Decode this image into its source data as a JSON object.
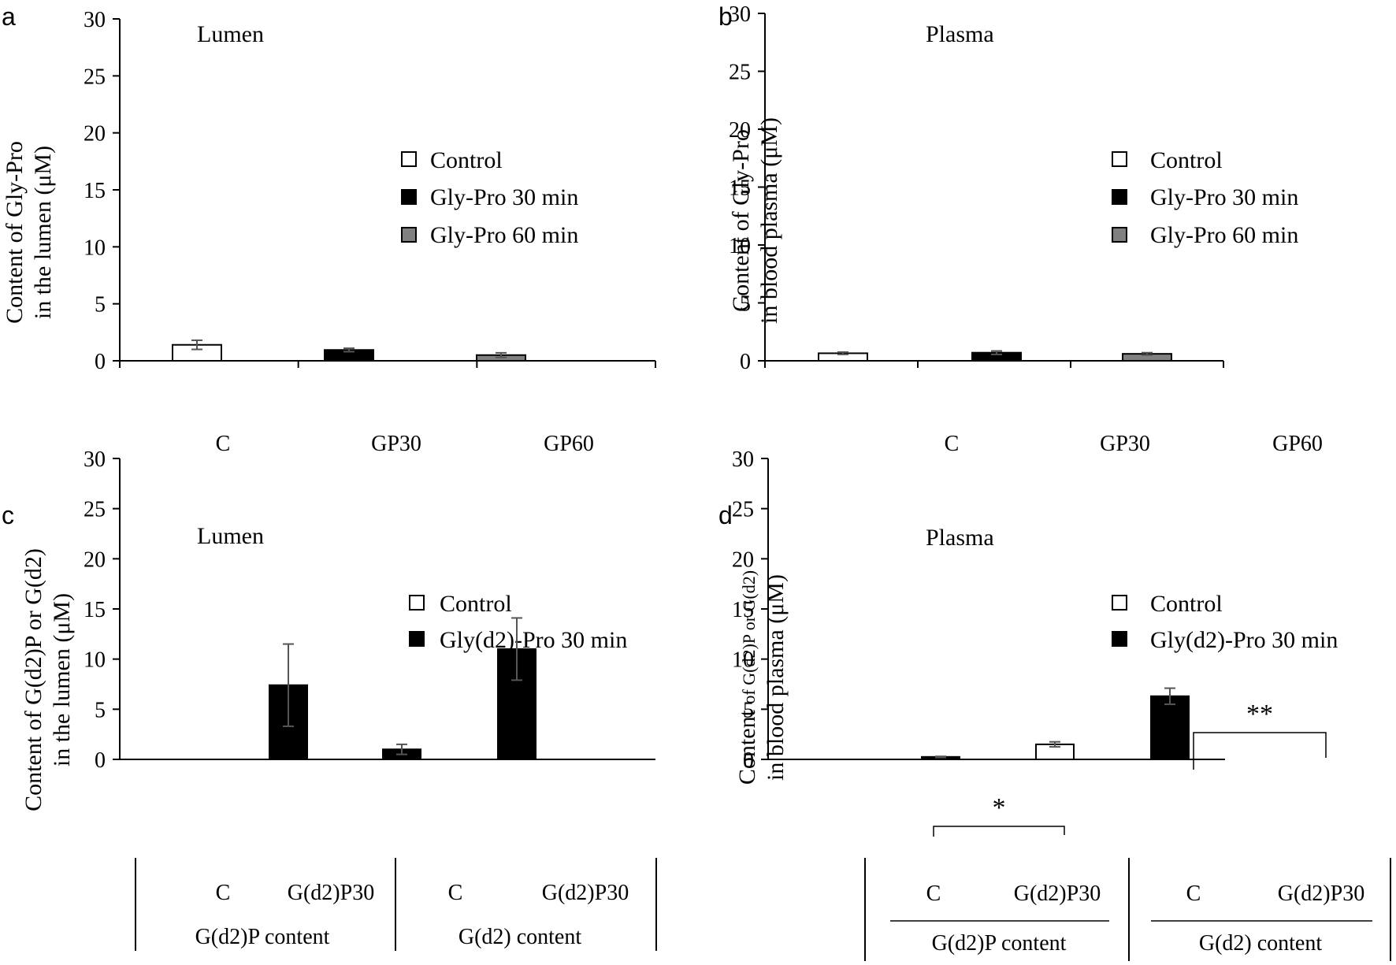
{
  "colors": {
    "control": "#ffffff",
    "gp30": "#000000",
    "gp60": "#808080",
    "gd2p30": "#000000",
    "axis": "#000000",
    "error": "#555555"
  },
  "chart_data": [
    {
      "panel": "a",
      "type": "bar",
      "title": "Lumen",
      "ylabel_lines": [
        "Content of Gly-Pro",
        "in the lumen (μM)"
      ],
      "ylim": [
        0,
        30
      ],
      "yticks": [
        "0",
        "5",
        "10",
        "15",
        "20",
        "25",
        "30"
      ],
      "categories": [
        "C",
        "GP30",
        "GP60"
      ],
      "legend": [
        {
          "label": "Control",
          "color": "#ffffff"
        },
        {
          "label": "Gly-Pro 30 min",
          "color": "#000000"
        },
        {
          "label": "Gly-Pro 60 min",
          "color": "#808080"
        }
      ],
      "bars": [
        {
          "category": "C",
          "value": 1.4,
          "error": 0.4,
          "color": "#ffffff"
        },
        {
          "category": "GP30",
          "value": 0.95,
          "error": 0.15,
          "color": "#000000"
        },
        {
          "category": "GP60",
          "value": 0.5,
          "error": 0.2,
          "color": "#808080"
        }
      ]
    },
    {
      "panel": "b",
      "type": "bar",
      "title": "Plasma",
      "ylabel_lines": [
        "Content of Gly-Pro",
        "in blood plasma (μM)"
      ],
      "ylim": [
        0,
        30
      ],
      "yticks": [
        "0",
        "5",
        "10",
        "15",
        "20",
        "25",
        "30"
      ],
      "categories": [
        "C",
        "GP30",
        "GP60"
      ],
      "legend": [
        {
          "label": "Control",
          "color": "#ffffff"
        },
        {
          "label": "Gly-Pro 30 min",
          "color": "#000000"
        },
        {
          "label": "Gly-Pro 60 min",
          "color": "#808080"
        }
      ],
      "bars": [
        {
          "category": "C",
          "value": 0.65,
          "error": 0.1,
          "color": "#ffffff"
        },
        {
          "category": "GP30",
          "value": 0.7,
          "error": 0.15,
          "color": "#000000"
        },
        {
          "category": "GP60",
          "value": 0.6,
          "error": 0.1,
          "color": "#808080"
        }
      ]
    },
    {
      "panel": "c",
      "type": "bar",
      "title": "Lumen",
      "ylabel_lines": [
        "Content of G(d2)P or G(d2)",
        "in the lumen (μM)"
      ],
      "ylim": [
        0,
        30
      ],
      "yticks": [
        "0",
        "5",
        "10",
        "15",
        "20",
        "25",
        "30"
      ],
      "categories": [
        "C",
        "G(d2)P30",
        "C",
        "G(d2)P30"
      ],
      "groups": [
        "G(d2)P content",
        "G(d2) content"
      ],
      "legend": [
        {
          "label": "Control",
          "color": "#ffffff"
        },
        {
          "label": "Gly(d2)-Pro 30 min",
          "color": "#000000"
        }
      ],
      "bars": [
        {
          "group": "G(d2)P content",
          "category": "C",
          "value": 0,
          "error": 0,
          "color": "#ffffff"
        },
        {
          "group": "G(d2)P content",
          "category": "G(d2)P30",
          "value": 7.4,
          "error": 4.1,
          "color": "#000000"
        },
        {
          "group": "G(d2) content",
          "category": "C",
          "value": 1.0,
          "error": 0.5,
          "color": "#000000"
        },
        {
          "group": "G(d2) content",
          "category": "G(d2)P30",
          "value": 11.0,
          "error": 3.1,
          "color": "#000000"
        }
      ]
    },
    {
      "panel": "d",
      "type": "bar",
      "title": "Plasma",
      "ylabel_lines": [
        "Content of G(d2)P or G(d2)",
        "in blood plasma (μM)"
      ],
      "ylim": [
        0,
        30
      ],
      "yticks": [
        "0",
        "5",
        "10",
        "15",
        "20",
        "25",
        "30"
      ],
      "categories": [
        "C",
        "G(d2)P30",
        "C",
        "G(d2)P30"
      ],
      "groups": [
        "G(d2)P content",
        "G(d2) content"
      ],
      "legend": [
        {
          "label": "Control",
          "color": "#ffffff"
        },
        {
          "label": "Gly(d2)-Pro 30 min",
          "color": "#000000"
        }
      ],
      "bars": [
        {
          "group": "G(d2)P content",
          "category": "C",
          "value": 0,
          "error": 0,
          "color": "#ffffff"
        },
        {
          "group": "G(d2)P content",
          "category": "G(d2)P30",
          "value": 0.25,
          "error": 0.05,
          "color": "#000000"
        },
        {
          "group": "G(d2) content",
          "category": "C",
          "value": 1.5,
          "error": 0.25,
          "color": "#ffffff"
        },
        {
          "group": "G(d2) content",
          "category": "G(d2)P30",
          "value": 6.3,
          "error": 0.8,
          "color": "#000000"
        }
      ],
      "significance": [
        {
          "between": [
            "C",
            "G(d2)P30"
          ],
          "group": "G(d2)P content",
          "label": "*"
        },
        {
          "between": [
            "C",
            "G(d2)P30"
          ],
          "group": "G(d2) content",
          "label": "**"
        }
      ]
    }
  ]
}
